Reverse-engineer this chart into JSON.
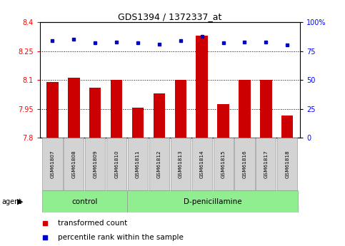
{
  "title": "GDS1394 / 1372337_at",
  "samples": [
    "GSM61807",
    "GSM61808",
    "GSM61809",
    "GSM61810",
    "GSM61811",
    "GSM61812",
    "GSM61813",
    "GSM61814",
    "GSM61815",
    "GSM61816",
    "GSM61817",
    "GSM61818"
  ],
  "transformed_counts": [
    8.09,
    8.11,
    8.06,
    8.1,
    7.955,
    8.03,
    8.1,
    8.33,
    7.975,
    8.1,
    8.1,
    7.915
  ],
  "percentile_ranks": [
    84,
    85,
    82,
    83,
    82,
    81,
    84,
    88,
    82,
    83,
    83,
    80
  ],
  "groups": [
    "control",
    "control",
    "control",
    "control",
    "D-penicillamine",
    "D-penicillamine",
    "D-penicillamine",
    "D-penicillamine",
    "D-penicillamine",
    "D-penicillamine",
    "D-penicillamine",
    "D-penicillamine"
  ],
  "ylim_left": [
    7.8,
    8.4
  ],
  "ylim_right": [
    0,
    100
  ],
  "yticks_left": [
    7.8,
    7.95,
    8.1,
    8.25,
    8.4
  ],
  "yticks_right": [
    0,
    25,
    50,
    75,
    100
  ],
  "bar_color": "#cc0000",
  "dot_color": "#0000cc",
  "grid_lines": [
    7.95,
    8.1,
    8.25
  ],
  "bar_width": 0.55,
  "control_bg": "#90ee90",
  "treatment_bg": "#90ee90",
  "label_bg": "#d3d3d3",
  "agent_label": "agent",
  "control_label": "control",
  "treatment_label": "D-penicillamine",
  "legend_bar_label": "transformed count",
  "legend_dot_label": "percentile rank within the sample",
  "n_control": 4,
  "n_treatment": 8
}
